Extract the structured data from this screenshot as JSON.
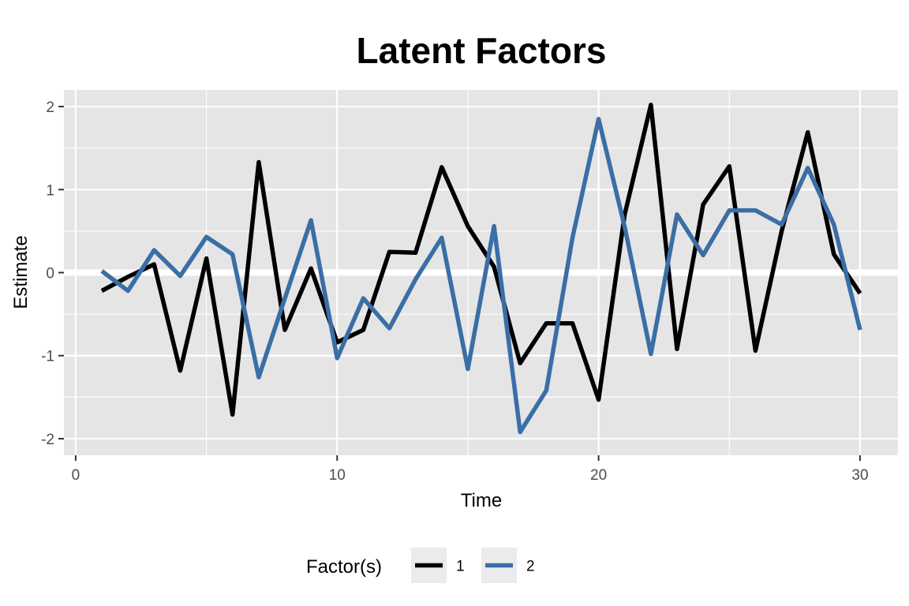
{
  "chart_data": {
    "type": "line",
    "title": "Latent Factors",
    "xlabel": "Time",
    "ylabel": "Estimate",
    "xlim": [
      -0.45,
      31.45
    ],
    "ylim": [
      -2.2,
      2.2
    ],
    "x_ticks": [
      0,
      10,
      20,
      30
    ],
    "x_tick_labels": [
      "0",
      "10",
      "20",
      "30"
    ],
    "y_ticks": [
      -2,
      -1,
      0,
      1,
      2
    ],
    "y_tick_labels": [
      "-2",
      "-1",
      "0",
      "1",
      "2"
    ],
    "grid": true,
    "legend": {
      "title": "Factor(s)",
      "position": "bottom"
    },
    "x": [
      1,
      2,
      3,
      4,
      5,
      6,
      7,
      8,
      9,
      10,
      11,
      12,
      13,
      14,
      15,
      16,
      17,
      18,
      19,
      20,
      21,
      22,
      23,
      24,
      25,
      26,
      27,
      28,
      29,
      30
    ],
    "series": [
      {
        "name": "1",
        "color": "#000000",
        "values": [
          -0.22,
          -0.05,
          0.1,
          -1.18,
          0.17,
          -1.71,
          1.33,
          -0.69,
          0.05,
          -0.84,
          -0.69,
          0.25,
          0.24,
          1.27,
          0.56,
          0.07,
          -1.09,
          -0.61,
          -0.61,
          -1.53,
          0.7,
          2.02,
          -0.92,
          0.82,
          1.28,
          -0.94,
          0.5,
          1.69,
          0.22,
          -0.25
        ]
      },
      {
        "name": "2",
        "color": "#3a6ea5",
        "values": [
          0.02,
          -0.22,
          0.27,
          -0.04,
          0.43,
          0.22,
          -1.26,
          -0.31,
          0.63,
          -1.03,
          -0.31,
          -0.67,
          -0.08,
          0.42,
          -1.16,
          0.56,
          -1.92,
          -1.42,
          0.42,
          1.85,
          0.55,
          -0.98,
          0.7,
          0.21,
          0.75,
          0.75,
          0.58,
          1.26,
          0.58,
          -0.69
        ]
      }
    ]
  }
}
